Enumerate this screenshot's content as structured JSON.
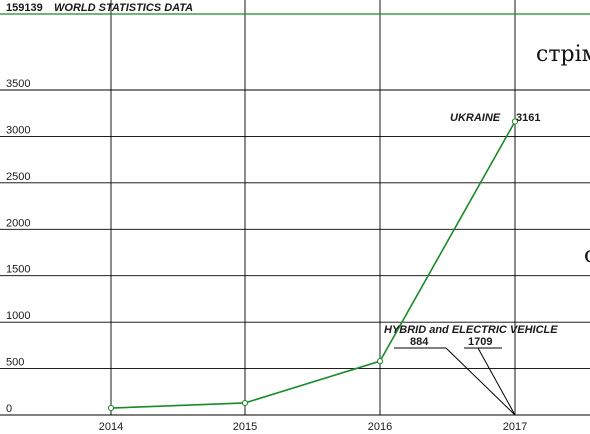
{
  "header": {
    "code": "159139",
    "title": "WORLD STATISTICS DATA"
  },
  "side_text": {
    "top": "стрім",
    "mid": "с"
  },
  "colors": {
    "series": "#1b8a2a",
    "header_rule": "#1b8a2a",
    "grid": "#000000"
  },
  "chart_data": {
    "type": "line",
    "x": [
      2014,
      2015,
      2016,
      2017
    ],
    "x_tick_labels": [
      "2014",
      "2015",
      "2016",
      "2017"
    ],
    "y_ticks": [
      0,
      500,
      1000,
      1500,
      2000,
      2500,
      3000,
      3500
    ],
    "y_tick_labels": [
      "0",
      "500",
      "1000",
      "1500",
      "2000",
      "2500",
      "3000",
      "3500"
    ],
    "ylim": [
      0,
      4000
    ],
    "grid": true,
    "series": [
      {
        "name": "UKRAINE",
        "values": [
          75,
          130,
          580,
          3161
        ]
      }
    ],
    "annotations": {
      "end_value": "3161",
      "group_label": "HYBRID and ELECTRIC VEHICLE",
      "sub_values": [
        "884",
        "1709"
      ]
    }
  }
}
